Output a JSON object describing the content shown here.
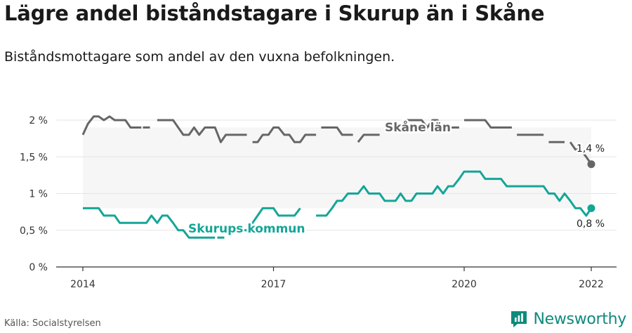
{
  "title": "Lägre andel biståndstagare i Skurup än i Skåne",
  "subtitle": "Biståndsmottagare som andel av den vuxna befolkningen.",
  "source": "Källa: Socialstyrelsen",
  "brand": {
    "name": "Newsworthy",
    "icon": "newsworthy-logo-icon"
  },
  "colors": {
    "skane": "#666666",
    "skurup": "#14a697",
    "band": "#f6f6f6",
    "grid": "#e5e5e5",
    "axis": "#333333"
  },
  "chart_data": {
    "type": "line",
    "title": "Lägre andel biståndstagare i Skurup än i Skåne",
    "xlabel": "",
    "ylabel": "",
    "xlim": [
      2014,
      2022.4
    ],
    "ylim": [
      0,
      2
    ],
    "x_ticks": [
      2014,
      2017,
      2020,
      2022
    ],
    "y_ticks": [
      {
        "value": 0,
        "label": "0 %"
      },
      {
        "value": 0.5,
        "label": "0,5 %"
      },
      {
        "value": 1,
        "label": "1 %"
      },
      {
        "value": 1.5,
        "label": "1,5 %"
      },
      {
        "value": 2,
        "label": "2 %"
      }
    ],
    "grid": true,
    "series": [
      {
        "name": "Skåne län",
        "style": "dashed-gaps",
        "end_label": "1,4 %",
        "segments": [
          [
            [
              2014.0,
              1.8
            ],
            [
              2014.08,
              1.95
            ],
            [
              2014.17,
              2.05
            ],
            [
              2014.25,
              2.05
            ],
            [
              2014.33,
              2.0
            ],
            [
              2014.42,
              2.05
            ],
            [
              2014.5,
              2.0
            ],
            [
              2014.58,
              2.0
            ],
            [
              2014.67,
              2.0
            ],
            [
              2014.75,
              1.9
            ],
            [
              2014.83,
              1.9
            ],
            [
              2014.92,
              1.9
            ]
          ],
          [
            [
              2015.0,
              1.9
            ]
          ],
          [
            [
              2015.17,
              2.0
            ],
            [
              2015.25,
              2.0
            ],
            [
              2015.33,
              2.0
            ],
            [
              2015.42,
              2.0
            ],
            [
              2015.5,
              1.9
            ],
            [
              2015.58,
              1.8
            ],
            [
              2015.67,
              1.8
            ],
            [
              2015.75,
              1.9
            ],
            [
              2015.83,
              1.8
            ],
            [
              2015.92,
              1.9
            ],
            [
              2016.0,
              1.9
            ],
            [
              2016.08,
              1.9
            ],
            [
              2016.17,
              1.7
            ],
            [
              2016.25,
              1.8
            ],
            [
              2016.33,
              1.8
            ],
            [
              2016.42,
              1.8
            ],
            [
              2016.5,
              1.8
            ],
            [
              2016.58,
              1.8
            ]
          ],
          [
            [
              2016.67,
              1.7
            ],
            [
              2016.75,
              1.7
            ],
            [
              2016.83,
              1.8
            ],
            [
              2016.92,
              1.8
            ],
            [
              2017.0,
              1.9
            ],
            [
              2017.08,
              1.9
            ],
            [
              2017.17,
              1.8
            ],
            [
              2017.25,
              1.8
            ],
            [
              2017.33,
              1.7
            ],
            [
              2017.42,
              1.7
            ],
            [
              2017.5,
              1.8
            ],
            [
              2017.58,
              1.8
            ],
            [
              2017.67,
              1.8
            ]
          ],
          [
            [
              2017.75,
              1.9
            ],
            [
              2017.83,
              1.9
            ],
            [
              2017.92,
              1.9
            ],
            [
              2018.0,
              1.9
            ],
            [
              2018.08,
              1.8
            ],
            [
              2018.17,
              1.8
            ],
            [
              2018.25,
              1.8
            ]
          ],
          [
            [
              2018.33,
              1.7
            ],
            [
              2018.42,
              1.8
            ],
            [
              2018.5,
              1.8
            ],
            [
              2018.58,
              1.8
            ],
            [
              2018.67,
              1.8
            ]
          ],
          [
            [
              2018.92,
              1.9
            ],
            [
              2019.0,
              1.9
            ]
          ],
          [
            [
              2019.08,
              2.0
            ],
            [
              2019.17,
              2.0
            ],
            [
              2019.25,
              2.0
            ],
            [
              2019.33,
              2.0
            ],
            [
              2019.42,
              1.9
            ],
            [
              2019.5,
              2.0
            ],
            [
              2019.58,
              2.0
            ],
            [
              2019.67,
              1.9
            ],
            [
              2019.75,
              1.9
            ],
            [
              2019.83,
              1.9
            ],
            [
              2019.92,
              1.9
            ]
          ],
          [
            [
              2020.0,
              2.0
            ],
            [
              2020.08,
              2.0
            ],
            [
              2020.17,
              2.0
            ],
            [
              2020.25,
              2.0
            ],
            [
              2020.33,
              2.0
            ],
            [
              2020.42,
              1.9
            ],
            [
              2020.5,
              1.9
            ],
            [
              2020.58,
              1.9
            ],
            [
              2020.67,
              1.9
            ],
            [
              2020.75,
              1.9
            ]
          ],
          [
            [
              2020.83,
              1.8
            ],
            [
              2020.92,
              1.8
            ],
            [
              2021.0,
              1.8
            ],
            [
              2021.08,
              1.8
            ],
            [
              2021.17,
              1.8
            ],
            [
              2021.25,
              1.8
            ]
          ],
          [
            [
              2021.33,
              1.7
            ],
            [
              2021.42,
              1.7
            ],
            [
              2021.5,
              1.7
            ],
            [
              2021.58,
              1.7
            ]
          ],
          [
            [
              2021.67,
              1.7
            ],
            [
              2021.75,
              1.6
            ],
            [
              2021.83,
              1.6
            ],
            [
              2021.92,
              1.5
            ],
            [
              2022.0,
              1.4
            ]
          ]
        ]
      },
      {
        "name": "Skurups kommun",
        "style": "solid-gaps",
        "end_label": "0,8 %",
        "segments": [
          [
            [
              2014.0,
              0.8
            ],
            [
              2014.08,
              0.8
            ],
            [
              2014.17,
              0.8
            ],
            [
              2014.25,
              0.8
            ],
            [
              2014.33,
              0.7
            ],
            [
              2014.42,
              0.7
            ],
            [
              2014.5,
              0.7
            ],
            [
              2014.58,
              0.6
            ],
            [
              2014.67,
              0.6
            ],
            [
              2014.75,
              0.6
            ],
            [
              2014.83,
              0.6
            ],
            [
              2014.92,
              0.6
            ],
            [
              2015.0,
              0.6
            ],
            [
              2015.08,
              0.7
            ],
            [
              2015.17,
              0.6
            ],
            [
              2015.25,
              0.7
            ],
            [
              2015.33,
              0.7
            ],
            [
              2015.42,
              0.6
            ],
            [
              2015.5,
              0.5
            ],
            [
              2015.58,
              0.5
            ],
            [
              2015.67,
              0.4
            ],
            [
              2015.75,
              0.4
            ],
            [
              2015.83,
              0.4
            ],
            [
              2015.92,
              0.4
            ],
            [
              2016.0,
              0.4
            ],
            [
              2016.08,
              0.4
            ]
          ],
          [
            [
              2016.17,
              0.4
            ]
          ],
          [
            [
              2016.33,
              0.5
            ],
            [
              2016.42,
              0.5
            ],
            [
              2016.5,
              0.5
            ],
            [
              2016.58,
              0.5
            ],
            [
              2016.67,
              0.6
            ],
            [
              2016.75,
              0.7
            ],
            [
              2016.83,
              0.8
            ],
            [
              2016.92,
              0.8
            ],
            [
              2017.0,
              0.8
            ],
            [
              2017.08,
              0.7
            ],
            [
              2017.17,
              0.7
            ],
            [
              2017.25,
              0.7
            ],
            [
              2017.33,
              0.7
            ],
            [
              2017.42,
              0.8
            ]
          ],
          [
            [
              2017.67,
              0.7
            ],
            [
              2017.75,
              0.7
            ],
            [
              2017.83,
              0.7
            ],
            [
              2017.92,
              0.8
            ],
            [
              2018.0,
              0.9
            ],
            [
              2018.08,
              0.9
            ],
            [
              2018.17,
              1.0
            ],
            [
              2018.25,
              1.0
            ],
            [
              2018.33,
              1.0
            ],
            [
              2018.42,
              1.1
            ],
            [
              2018.5,
              1.0
            ],
            [
              2018.58,
              1.0
            ],
            [
              2018.67,
              1.0
            ],
            [
              2018.75,
              0.9
            ],
            [
              2018.83,
              0.9
            ],
            [
              2018.92,
              0.9
            ],
            [
              2019.0,
              1.0
            ],
            [
              2019.08,
              0.9
            ],
            [
              2019.17,
              0.9
            ],
            [
              2019.25,
              1.0
            ],
            [
              2019.33,
              1.0
            ],
            [
              2019.42,
              1.0
            ],
            [
              2019.5,
              1.0
            ],
            [
              2019.58,
              1.1
            ],
            [
              2019.67,
              1.0
            ],
            [
              2019.75,
              1.1
            ],
            [
              2019.83,
              1.1
            ],
            [
              2019.92,
              1.2
            ],
            [
              2020.0,
              1.3
            ],
            [
              2020.08,
              1.3
            ],
            [
              2020.17,
              1.3
            ],
            [
              2020.25,
              1.3
            ],
            [
              2020.33,
              1.2
            ],
            [
              2020.42,
              1.2
            ],
            [
              2020.5,
              1.2
            ],
            [
              2020.58,
              1.2
            ],
            [
              2020.67,
              1.1
            ],
            [
              2020.75,
              1.1
            ],
            [
              2020.83,
              1.1
            ],
            [
              2020.92,
              1.1
            ],
            [
              2021.0,
              1.1
            ],
            [
              2021.08,
              1.1
            ],
            [
              2021.17,
              1.1
            ],
            [
              2021.25,
              1.1
            ],
            [
              2021.33,
              1.0
            ],
            [
              2021.42,
              1.0
            ],
            [
              2021.5,
              0.9
            ],
            [
              2021.58,
              1.0
            ],
            [
              2021.67,
              0.9
            ],
            [
              2021.75,
              0.8
            ],
            [
              2021.83,
              0.8
            ],
            [
              2021.92,
              0.7
            ],
            [
              2022.0,
              0.8
            ]
          ]
        ]
      }
    ]
  }
}
